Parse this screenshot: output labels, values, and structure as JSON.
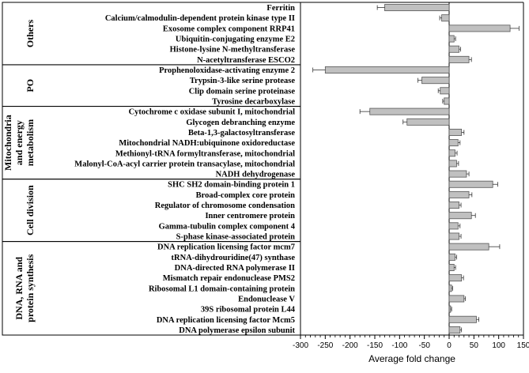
{
  "chart_data": {
    "type": "bar",
    "orientation": "horizontal",
    "xlabel": "Average fold change",
    "xlim": [
      -300,
      150
    ],
    "xticks": [
      -300,
      -250,
      -200,
      -150,
      -100,
      -50,
      0,
      50,
      100,
      150
    ],
    "groups": [
      {
        "name": "Others",
        "items": [
          {
            "label": "Ferritin",
            "value": -130,
            "error": 15
          },
          {
            "label": "Calcium/calmodulin-dependent protein kinase type II",
            "value": -15,
            "error": 4
          },
          {
            "label": "Exosome complex component RRP41",
            "value": 123,
            "error": 18
          },
          {
            "label": "Ubiquitin-conjugating enzyme E2",
            "value": 10,
            "error": 3
          },
          {
            "label": "Histone-lysine N-methyltransferase",
            "value": 20,
            "error": 3
          },
          {
            "label": "N-acetyltransferase ESCO2",
            "value": 40,
            "error": 5
          }
        ]
      },
      {
        "name": "PO",
        "items": [
          {
            "label": "Prophenoloxidase-activating enzyme 2",
            "value": -250,
            "error": 25
          },
          {
            "label": "Trypsin-3-like serine protease",
            "value": -55,
            "error": 8
          },
          {
            "label": "Clip domain serine proteinase",
            "value": -18,
            "error": 4
          },
          {
            "label": "Tyrosine decarboxylase",
            "value": -10,
            "error": 3
          }
        ]
      },
      {
        "name": "Mitochondria and energy metabolism",
        "items": [
          {
            "label": "Cytochrome c oxidase subunit I, mitochondrial",
            "value": -160,
            "error": 20
          },
          {
            "label": "Glycogen debranching enzyme",
            "value": -85,
            "error": 8
          },
          {
            "label": "Beta-1,3-galactosyltransferase",
            "value": 25,
            "error": 5
          },
          {
            "label": "Mitochondrial NADH:ubiquinone oxidoreductase",
            "value": 18,
            "error": 4
          },
          {
            "label": "Methionyl-tRNA formyltransferase, mitochondrial",
            "value": 12,
            "error": 4
          },
          {
            "label": "Malonyl-CoA-acyl carrier protein transacylase, mitochondrial",
            "value": 15,
            "error": 4
          },
          {
            "label": "NADH dehydrogenase",
            "value": 35,
            "error": 5
          }
        ]
      },
      {
        "name": "Cell division",
        "items": [
          {
            "label": "SHC SH2 domain-binding protein 1",
            "value": 88,
            "error": 10
          },
          {
            "label": "Broad-complex core protein",
            "value": 40,
            "error": 6
          },
          {
            "label": "Regulator of chromosome condensation",
            "value": 20,
            "error": 4
          },
          {
            "label": "Inner centromere protein",
            "value": 45,
            "error": 8
          },
          {
            "label": "Gamma-tubulin complex component 4",
            "value": 18,
            "error": 4
          },
          {
            "label": "S-phase kinase-associated protein",
            "value": 20,
            "error": 4
          }
        ]
      },
      {
        "name": "DNA, RNA and protein synthesis",
        "items": [
          {
            "label": "DNA replication licensing factor mcm7",
            "value": 80,
            "error": 22
          },
          {
            "label": "tRNA-dihydrouridine(47) synthase",
            "value": 12,
            "error": 3
          },
          {
            "label": "DNA-directed RNA polymerase II",
            "value": 10,
            "error": 3
          },
          {
            "label": "Mismatch repair endonuclease PMS2",
            "value": 25,
            "error": 4
          },
          {
            "label": "Ribosomal L1 domain-containing protein",
            "value": 5,
            "error": 2
          },
          {
            "label": "Endonuclease V",
            "value": 30,
            "error": 3
          },
          {
            "label": "39S ribosomal protein L44",
            "value": 3,
            "error": 2
          },
          {
            "label": "DNA replication licensing factor Mcm5",
            "value": 55,
            "error": 5
          },
          {
            "label": "DNA polymerase epsilon subunit",
            "value": 22,
            "error": 3
          }
        ]
      }
    ],
    "colors": {
      "bar": "#c0c0c0",
      "bar_stroke": "#555555",
      "axis": "#000000"
    }
  }
}
